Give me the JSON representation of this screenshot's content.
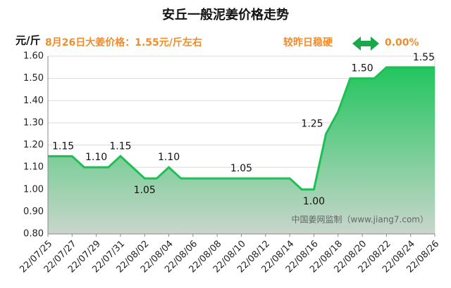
{
  "chart_data": {
    "type": "area",
    "title": "安丘一般泥姜价格走势",
    "y_unit": "元/斤",
    "subtitle": "8月26日大姜价格：1.55元/斤左右",
    "change_label": "较昨日稳硬",
    "change_value": "0.00%",
    "watermark": "中国姜网监制（www.jiang7.com）",
    "color": "#1fbf55",
    "categories": [
      "22/07/25",
      null,
      "22/07/27",
      null,
      "22/07/29",
      null,
      "22/07/31",
      null,
      "22/08/02",
      null,
      "22/08/04",
      null,
      "22/08/06",
      null,
      "22/08/08",
      null,
      "22/08/10",
      null,
      "22/08/12",
      null,
      "22/08/14",
      null,
      "22/08/16",
      null,
      "22/08/18",
      null,
      "22/08/20",
      null,
      "22/08/22",
      null,
      "22/08/24",
      null,
      "22/08/26"
    ],
    "values": [
      1.15,
      1.15,
      1.15,
      1.1,
      1.1,
      1.1,
      1.15,
      1.1,
      1.05,
      1.05,
      1.1,
      1.05,
      1.05,
      1.05,
      1.05,
      1.05,
      1.05,
      1.05,
      1.05,
      1.05,
      1.05,
      1.0,
      1.0,
      1.25,
      1.35,
      1.5,
      1.5,
      1.5,
      1.55,
      1.55,
      1.55,
      1.55,
      1.55
    ],
    "value_labels": [
      "1.15",
      null,
      null,
      null,
      "1.10",
      null,
      "1.15",
      null,
      "1.05",
      null,
      "1.10",
      null,
      null,
      null,
      null,
      null,
      "1.05",
      null,
      null,
      null,
      null,
      null,
      "1.00",
      "1.25",
      null,
      null,
      "1.50",
      null,
      null,
      null,
      null,
      null,
      "1.55"
    ],
    "ylim": [
      0.8,
      1.6
    ],
    "yticks": [
      {
        "value": 0.8,
        "label": "0.80"
      },
      {
        "value": 0.9,
        "label": "0.90"
      },
      {
        "value": 1.0,
        "label": "1.00"
      },
      {
        "value": 1.1,
        "label": "1.10"
      },
      {
        "value": 1.2,
        "label": "1.20"
      },
      {
        "value": 1.3,
        "label": "1.30"
      },
      {
        "value": 1.4,
        "label": "1.40"
      },
      {
        "value": 1.5,
        "label": "1.50"
      },
      {
        "value": 1.6,
        "label": "1.60"
      }
    ],
    "grid": true
  }
}
